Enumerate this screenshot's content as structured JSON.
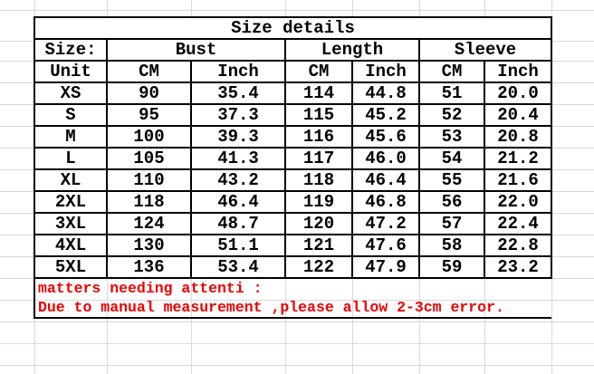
{
  "title": "Size details",
  "table": {
    "header": {
      "size_label": "Size:",
      "groups": [
        "Bust",
        "Length",
        "Sleeve"
      ]
    },
    "unit_row": [
      "Unit",
      "CM",
      "Inch",
      "CM",
      "Inch",
      "CM",
      "Inch"
    ],
    "rows": [
      {
        "size": "XS",
        "bust_cm": "90",
        "bust_inch": "35.4",
        "length_cm": "114",
        "length_inch": "44.8",
        "sleeve_cm": "51",
        "sleeve_inch": "20.0"
      },
      {
        "size": "S",
        "bust_cm": "95",
        "bust_inch": "37.3",
        "length_cm": "115",
        "length_inch": "45.2",
        "sleeve_cm": "52",
        "sleeve_inch": "20.4"
      },
      {
        "size": "M",
        "bust_cm": "100",
        "bust_inch": "39.3",
        "length_cm": "116",
        "length_inch": "45.6",
        "sleeve_cm": "53",
        "sleeve_inch": "20.8"
      },
      {
        "size": "L",
        "bust_cm": "105",
        "bust_inch": "41.3",
        "length_cm": "117",
        "length_inch": "46.0",
        "sleeve_cm": "54",
        "sleeve_inch": "21.2"
      },
      {
        "size": "XL",
        "bust_cm": "110",
        "bust_inch": "43.2",
        "length_cm": "118",
        "length_inch": "46.4",
        "sleeve_cm": "55",
        "sleeve_inch": "21.6"
      },
      {
        "size": "2XL",
        "bust_cm": "118",
        "bust_inch": "46.4",
        "length_cm": "119",
        "length_inch": "46.8",
        "sleeve_cm": "56",
        "sleeve_inch": "22.0"
      },
      {
        "size": "3XL",
        "bust_cm": "124",
        "bust_inch": "48.7",
        "length_cm": "120",
        "length_inch": "47.2",
        "sleeve_cm": "57",
        "sleeve_inch": "22.4"
      },
      {
        "size": "4XL",
        "bust_cm": "130",
        "bust_inch": "51.1",
        "length_cm": "121",
        "length_inch": "47.6",
        "sleeve_cm": "58",
        "sleeve_inch": "22.8"
      },
      {
        "size": "5XL",
        "bust_cm": "136",
        "bust_inch": "53.4",
        "length_cm": "122",
        "length_inch": "47.9",
        "sleeve_cm": "59",
        "sleeve_inch": "23.2"
      }
    ]
  },
  "notes": {
    "line1": "matters needing attenti :",
    "line2": "Due to manual measurement ,please allow 2-3cm error."
  },
  "colors": {
    "note_red": "#ee0000",
    "gridline": "#d9d9d9",
    "table_border": "#000000",
    "background": "#ffffff"
  }
}
